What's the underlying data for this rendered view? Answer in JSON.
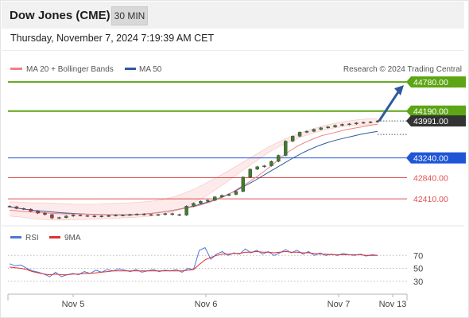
{
  "header": {
    "title": "Dow Jones (CME)",
    "timeframe": "30 MIN",
    "datetime": "Thursday, November 7, 2024 7:19:39 AM CET"
  },
  "main_legend": {
    "ma20_label": "MA 20 + Bollinger Bands",
    "ma50_label": "MA 50",
    "credit": "Research © 2024 Trading Central",
    "ma20_color": "#f08080",
    "ma50_color": "#2e5a9c"
  },
  "rsi_legend": {
    "rsi_label": "RSI",
    "ma9_label": "9MA",
    "rsi_color": "#4a78d6",
    "ma9_color": "#e03030"
  },
  "chart_data": [
    {
      "type": "candlestick",
      "title": "Dow Jones (CME)",
      "ylim": [
        41960,
        44960
      ],
      "y_axis": "none",
      "x_ticks": [
        "Nov 5",
        "Nov 6",
        "Nov 7",
        "Nov 13"
      ],
      "price_levels": [
        {
          "label": "44780.00",
          "value": 44780,
          "kind": "target",
          "color": "#5da515"
        },
        {
          "label": "44190.00",
          "value": 44190,
          "kind": "resistance",
          "color": "#5da515"
        },
        {
          "label": "43991.00",
          "value": 43991,
          "kind": "last",
          "color": "#333333"
        },
        {
          "label": "43240.00",
          "value": 43240,
          "kind": "pivot",
          "color": "#1f56d6"
        },
        {
          "label": "42840.00",
          "value": 42840,
          "kind": "support",
          "color": "#e05050"
        },
        {
          "label": "42410.00",
          "value": 42410,
          "kind": "support",
          "color": "#e05050"
        }
      ],
      "arrow": {
        "from": 43991,
        "to": 44780,
        "color": "#2e5a9c"
      },
      "close_series": [
        42250,
        42215,
        42200,
        42160,
        42120,
        42090,
        42020,
        42030,
        42060,
        42080,
        42070,
        42060,
        42050,
        42060,
        42070,
        42080,
        42080,
        42090,
        42100,
        42090,
        42080,
        42090,
        42110,
        42090,
        42080,
        42260,
        42320,
        42360,
        42380,
        42450,
        42480,
        42500,
        42560,
        42850,
        43010,
        43060,
        43080,
        43170,
        43290,
        43580,
        43680,
        43760,
        43780,
        43820,
        43850,
        43870,
        43900,
        43920,
        43930,
        43950,
        43960,
        43970,
        43991
      ],
      "ma20": [
        42180,
        42165,
        42150,
        42140,
        42130,
        42120,
        42110,
        42105,
        42100,
        42100,
        42095,
        42090,
        42085,
        42085,
        42080,
        42080,
        42090,
        42100,
        42120,
        42140,
        42160,
        42190,
        42220,
        42250,
        42290,
        42340,
        42400,
        42470,
        42560,
        42660,
        42760,
        42870,
        42990,
        43120,
        43260,
        43380,
        43480,
        43560,
        43630,
        43690,
        43730,
        43770,
        43810,
        43840,
        43870,
        43900,
        43925
      ],
      "ma50": [
        42250,
        42220,
        42195,
        42175,
        42160,
        42145,
        42130,
        42120,
        42110,
        42100,
        42095,
        42090,
        42085,
        42085,
        42085,
        42090,
        42100,
        42115,
        42135,
        42160,
        42190,
        42225,
        42265,
        42310,
        42360,
        42420,
        42490,
        42570,
        42660,
        42750,
        42850,
        42950,
        43050,
        43150,
        43250,
        43340,
        43420,
        43490,
        43550,
        43600,
        43640,
        43680,
        43720,
        43750,
        43780
      ],
      "bb_upper": [
        42350,
        42340,
        42330,
        42330,
        42320,
        42310,
        42300,
        42300,
        42300,
        42310,
        42320,
        42330,
        42340,
        42360,
        42390,
        42440,
        42510,
        42600,
        42710,
        42830,
        42950,
        43080,
        43210,
        43340,
        43470,
        43580,
        43670,
        43760,
        43830,
        43890,
        43940,
        43980,
        44010,
        44030,
        44040
      ],
      "bb_lower": [
        42060,
        42040,
        42010,
        41990,
        41980,
        41980,
        41985,
        41990,
        42000,
        42010,
        42020,
        42030,
        42040,
        42060,
        42090,
        42140,
        42220,
        42330,
        42450,
        42590,
        42740,
        42900,
        43060,
        43210,
        43360,
        43480,
        43580,
        43670,
        43740,
        43800,
        43850,
        43880,
        43900,
        43910,
        43920
      ]
    },
    {
      "type": "line",
      "title": "RSI",
      "ylim": [
        10,
        90
      ],
      "y_ticks": [
        70,
        50,
        30
      ],
      "x_ticks": [
        "Nov 5",
        "Nov 6",
        "Nov 7",
        "Nov 13"
      ],
      "series": [
        {
          "name": "RSI",
          "values": [
            57,
            54,
            55,
            50,
            46,
            44,
            41,
            37,
            44,
            37,
            40,
            42,
            40,
            45,
            42,
            47,
            44,
            48,
            46,
            49,
            47,
            45,
            48,
            44,
            46,
            48,
            45,
            47,
            46,
            48,
            44,
            50,
            48,
            78,
            82,
            64,
            72,
            76,
            70,
            74,
            72,
            80,
            74,
            78,
            72,
            76,
            70,
            74,
            79,
            74,
            78,
            72,
            76,
            70,
            74,
            70,
            72,
            70,
            73,
            71,
            70,
            72,
            69,
            71,
            70
          ]
        },
        {
          "name": "9MA",
          "values": [
            52,
            51,
            50,
            48,
            45,
            43,
            41,
            40,
            41,
            40,
            40,
            41,
            41,
            42,
            42,
            43,
            44,
            45,
            46,
            46,
            46,
            46,
            46,
            46,
            46,
            46,
            46,
            46,
            46,
            46,
            46,
            47,
            48,
            56,
            63,
            67,
            70,
            72,
            72,
            73,
            73,
            75,
            75,
            76,
            75,
            75,
            74,
            75,
            76,
            75,
            75,
            74,
            74,
            73,
            72,
            72,
            71,
            71,
            71,
            71,
            71,
            71,
            70,
            70,
            70
          ]
        }
      ]
    }
  ]
}
